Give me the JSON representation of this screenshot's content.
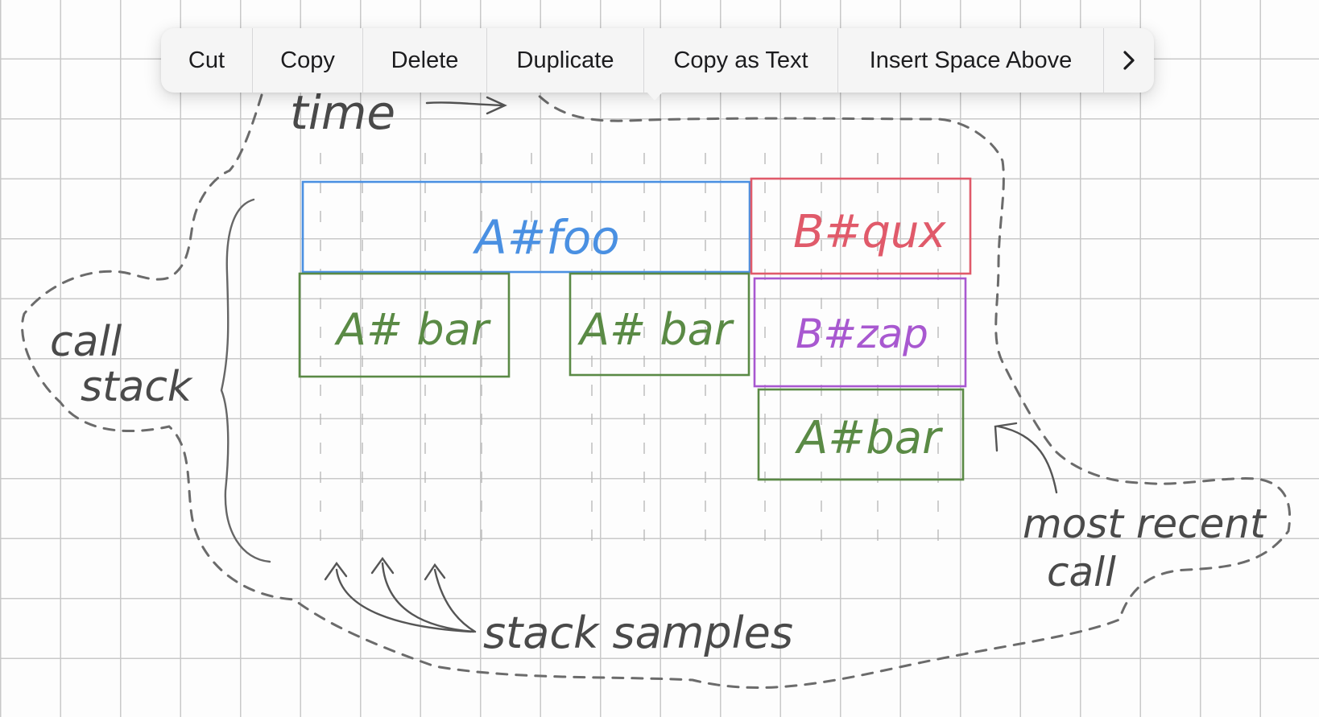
{
  "menu": {
    "items": [
      {
        "label": "Cut"
      },
      {
        "label": "Copy"
      },
      {
        "label": "Delete"
      },
      {
        "label": "Duplicate"
      },
      {
        "label": "Copy as Text"
      },
      {
        "label": "Insert Space Above"
      }
    ],
    "more_icon": "chevron-right-icon"
  },
  "sketch": {
    "time_label": "time",
    "call_stack_label": [
      "call",
      "stack"
    ],
    "stack_samples_label": "stack samples",
    "most_recent_label": [
      "most recent",
      "call"
    ],
    "frames": [
      {
        "label": "A#foo",
        "color": "#4a90e2"
      },
      {
        "label": "B#qux",
        "color": "#e05a6a"
      },
      {
        "label": "A# bar",
        "color": "#5a8a45"
      },
      {
        "label": "A# bar",
        "color": "#5a8a45"
      },
      {
        "label": "B#zap",
        "color": "#a858d0"
      },
      {
        "label": "A#bar",
        "color": "#5a8a45"
      }
    ]
  },
  "colors": {
    "menu_bg": "#f5f5f5",
    "grid": "#c9c9c9",
    "pencil": "#555555",
    "dashed": "#6b6b6b"
  }
}
